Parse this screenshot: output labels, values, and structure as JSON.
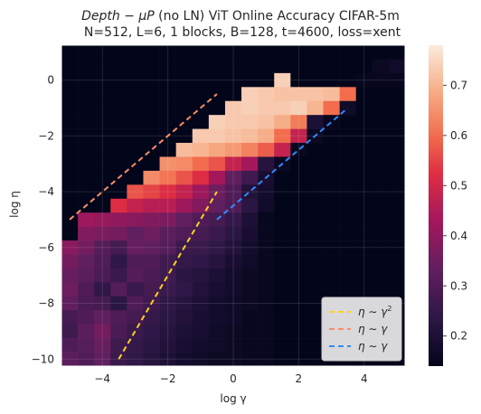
{
  "chart_data": {
    "type": "heatmap",
    "title_line1_italic": "Depth − μP",
    "title_line1_rest": " (no LN) ViT Online Accuracy CIFAR-5m",
    "title_line2": "N=512, L=6, 1 blocks, B=128, t=4600, loss=xent",
    "xlabel": "log γ",
    "ylabel": "log η",
    "xlim": [
      -5.25,
      5.25
    ],
    "ylim": [
      -10.25,
      1.25
    ],
    "x_ticks": [
      -4,
      -2,
      0,
      2,
      4
    ],
    "x_tick_labels": [
      "−4",
      "−2",
      "0",
      "2",
      "4"
    ],
    "y_ticks": [
      0,
      -2,
      -4,
      -6,
      -8,
      -10
    ],
    "y_tick_labels": [
      "0",
      "−2",
      "−4",
      "−6",
      "−8",
      "−10"
    ],
    "grid": true,
    "colormap": "rocket",
    "colorbar": {
      "min": 0.14,
      "max": 0.78,
      "ticks": [
        0.2,
        0.3,
        0.4,
        0.5,
        0.6,
        0.7
      ],
      "tick_labels": [
        "0.2",
        "0.3",
        "0.4",
        "0.5",
        "0.6",
        "0.7"
      ]
    },
    "x_cells": [
      -5.0,
      -4.5,
      -4.0,
      -3.5,
      -3.0,
      -2.5,
      -2.0,
      -1.5,
      -1.0,
      -0.5,
      0.0,
      0.5,
      1.0,
      1.5,
      2.0,
      2.5,
      3.0,
      3.5,
      4.0,
      4.5,
      5.0
    ],
    "y_cells": [
      1.0,
      0.5,
      0.0,
      -0.5,
      -1.0,
      -1.5,
      -2.0,
      -2.5,
      -3.0,
      -3.5,
      -4.0,
      -4.5,
      -5.0,
      -5.5,
      -6.0,
      -6.5,
      -7.0,
      -7.5,
      -8.0,
      -8.5,
      -9.0,
      -9.5,
      -10.0
    ],
    "values": [
      [
        0.14,
        0.14,
        0.14,
        0.14,
        0.14,
        0.14,
        0.14,
        0.14,
        0.14,
        0.14,
        0.14,
        0.14,
        0.14,
        0.14,
        0.14,
        0.14,
        0.14,
        0.14,
        0.14,
        0.14,
        0.14
      ],
      [
        0.14,
        0.14,
        0.14,
        0.14,
        0.14,
        0.14,
        0.14,
        0.14,
        0.14,
        0.14,
        0.14,
        0.14,
        0.14,
        0.14,
        0.14,
        0.14,
        0.14,
        0.14,
        0.14,
        0.16,
        0.17
      ],
      [
        0.14,
        0.14,
        0.14,
        0.14,
        0.14,
        0.14,
        0.14,
        0.14,
        0.14,
        0.14,
        0.14,
        0.14,
        0.14,
        0.74,
        0.14,
        0.14,
        0.14,
        0.14,
        0.15,
        0.15,
        0.15
      ],
      [
        0.14,
        0.14,
        0.14,
        0.14,
        0.14,
        0.14,
        0.14,
        0.14,
        0.14,
        0.14,
        0.14,
        0.74,
        0.73,
        0.72,
        0.72,
        0.72,
        0.71,
        0.6,
        0.14,
        0.14,
        0.14
      ],
      [
        0.14,
        0.14,
        0.14,
        0.14,
        0.14,
        0.14,
        0.14,
        0.14,
        0.14,
        0.14,
        0.73,
        0.74,
        0.73,
        0.73,
        0.74,
        0.7,
        0.6,
        0.17,
        0.14,
        0.14,
        0.14
      ],
      [
        0.14,
        0.14,
        0.14,
        0.14,
        0.14,
        0.14,
        0.14,
        0.14,
        0.14,
        0.74,
        0.73,
        0.73,
        0.72,
        0.69,
        0.62,
        0.2,
        0.15,
        0.14,
        0.14,
        0.14,
        0.14
      ],
      [
        0.14,
        0.14,
        0.14,
        0.14,
        0.14,
        0.14,
        0.14,
        0.14,
        0.73,
        0.73,
        0.72,
        0.71,
        0.69,
        0.6,
        0.48,
        0.16,
        0.14,
        0.14,
        0.14,
        0.14,
        0.14
      ],
      [
        0.14,
        0.14,
        0.14,
        0.14,
        0.14,
        0.14,
        0.14,
        0.71,
        0.7,
        0.68,
        0.66,
        0.63,
        0.58,
        0.48,
        0.15,
        0.14,
        0.14,
        0.14,
        0.14,
        0.14,
        0.14
      ],
      [
        0.14,
        0.14,
        0.14,
        0.14,
        0.14,
        0.14,
        0.65,
        0.64,
        0.6,
        0.57,
        0.48,
        0.43,
        0.22,
        0.16,
        0.14,
        0.14,
        0.14,
        0.14,
        0.14,
        0.14,
        0.14
      ],
      [
        0.14,
        0.14,
        0.14,
        0.14,
        0.14,
        0.64,
        0.61,
        0.57,
        0.52,
        0.43,
        0.33,
        0.27,
        0.19,
        0.14,
        0.14,
        0.14,
        0.14,
        0.14,
        0.14,
        0.14,
        0.14
      ],
      [
        0.14,
        0.14,
        0.14,
        0.14,
        0.57,
        0.55,
        0.52,
        0.48,
        0.42,
        0.35,
        0.3,
        0.21,
        0.18,
        0.14,
        0.14,
        0.14,
        0.14,
        0.14,
        0.14,
        0.14,
        0.14
      ],
      [
        0.14,
        0.14,
        0.14,
        0.52,
        0.48,
        0.46,
        0.46,
        0.42,
        0.38,
        0.33,
        0.3,
        0.23,
        0.17,
        0.14,
        0.14,
        0.14,
        0.14,
        0.14,
        0.14,
        0.14,
        0.14
      ],
      [
        0.14,
        0.42,
        0.41,
        0.4,
        0.39,
        0.38,
        0.37,
        0.33,
        0.3,
        0.28,
        0.25,
        0.2,
        0.15,
        0.14,
        0.14,
        0.14,
        0.14,
        0.14,
        0.14,
        0.14,
        0.14
      ],
      [
        0.14,
        0.38,
        0.37,
        0.36,
        0.33,
        0.35,
        0.32,
        0.3,
        0.28,
        0.26,
        0.23,
        0.19,
        0.15,
        0.14,
        0.14,
        0.14,
        0.14,
        0.14,
        0.14,
        0.14,
        0.14
      ],
      [
        0.39,
        0.36,
        0.31,
        0.28,
        0.34,
        0.33,
        0.31,
        0.26,
        0.26,
        0.24,
        0.21,
        0.18,
        0.15,
        0.14,
        0.14,
        0.14,
        0.14,
        0.14,
        0.14,
        0.14,
        0.14
      ],
      [
        0.36,
        0.33,
        0.3,
        0.24,
        0.3,
        0.3,
        0.27,
        0.25,
        0.24,
        0.22,
        0.19,
        0.17,
        0.15,
        0.14,
        0.14,
        0.14,
        0.14,
        0.14,
        0.14,
        0.14,
        0.14
      ],
      [
        0.34,
        0.32,
        0.29,
        0.26,
        0.31,
        0.29,
        0.27,
        0.23,
        0.22,
        0.2,
        0.18,
        0.16,
        0.15,
        0.14,
        0.14,
        0.14,
        0.14,
        0.14,
        0.14,
        0.14,
        0.14
      ],
      [
        0.35,
        0.3,
        0.24,
        0.31,
        0.26,
        0.28,
        0.26,
        0.24,
        0.21,
        0.19,
        0.18,
        0.16,
        0.15,
        0.14,
        0.14,
        0.14,
        0.14,
        0.14,
        0.14,
        0.14,
        0.14
      ],
      [
        0.33,
        0.29,
        0.28,
        0.23,
        0.3,
        0.27,
        0.24,
        0.22,
        0.2,
        0.18,
        0.17,
        0.16,
        0.15,
        0.14,
        0.14,
        0.14,
        0.14,
        0.14,
        0.14,
        0.14,
        0.14
      ],
      [
        0.28,
        0.3,
        0.33,
        0.3,
        0.28,
        0.25,
        0.23,
        0.21,
        0.19,
        0.18,
        0.17,
        0.15,
        0.15,
        0.14,
        0.14,
        0.14,
        0.14,
        0.14,
        0.14,
        0.14,
        0.14
      ],
      [
        0.27,
        0.32,
        0.36,
        0.29,
        0.26,
        0.24,
        0.22,
        0.2,
        0.19,
        0.17,
        0.16,
        0.15,
        0.15,
        0.14,
        0.14,
        0.14,
        0.14,
        0.14,
        0.14,
        0.14,
        0.14
      ],
      [
        0.3,
        0.31,
        0.34,
        0.27,
        0.25,
        0.23,
        0.21,
        0.19,
        0.18,
        0.17,
        0.16,
        0.15,
        0.15,
        0.14,
        0.14,
        0.14,
        0.14,
        0.14,
        0.14,
        0.14,
        0.14
      ],
      [
        0.32,
        0.3,
        0.33,
        0.26,
        0.24,
        0.22,
        0.2,
        0.18,
        0.17,
        0.16,
        0.16,
        0.15,
        0.15,
        0.14,
        0.14,
        0.14,
        0.14,
        0.14,
        0.14,
        0.14,
        0.14
      ]
    ],
    "lines": [
      {
        "name": "η ∼ γ²",
        "color": "#ffd21f",
        "x": [
          -3.5,
          -0.5
        ],
        "y": [
          -10.0,
          -4.0
        ]
      },
      {
        "name": "η ∼ γ",
        "color": "#fa8e64",
        "x": [
          -5.0,
          -0.5
        ],
        "y": [
          -5.0,
          -0.5
        ]
      },
      {
        "name": "η ∼ γ",
        "color": "#2f8cff",
        "x": [
          -0.5,
          3.5
        ],
        "y": [
          -5.0,
          -1.0
        ]
      }
    ],
    "legend": {
      "placement": "lower-right",
      "entries": [
        {
          "prefix": "η ∼ γ",
          "sup": "2"
        },
        {
          "prefix": "η ∼ γ",
          "sup": ""
        },
        {
          "prefix": "η ∼ γ",
          "sup": ""
        }
      ]
    }
  }
}
